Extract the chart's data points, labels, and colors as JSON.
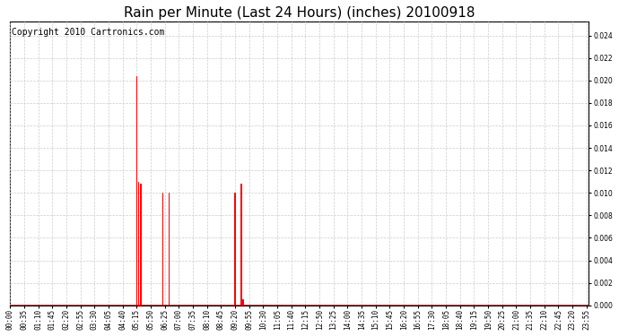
{
  "title": "Rain per Minute (Last 24 Hours) (inches) 20100918",
  "copyright": "Copyright 2010 Cartronics.com",
  "bar_color": "#ff0000",
  "background_color": "#ffffff",
  "plot_background": "#ffffff",
  "ylim": [
    0.0,
    0.0252
  ],
  "yticks": [
    0.0,
    0.002,
    0.004,
    0.006,
    0.008,
    0.01,
    0.012,
    0.014,
    0.016,
    0.018,
    0.02,
    0.022,
    0.024
  ],
  "grid_color": "#cccccc",
  "baseline_color": "#ff0000",
  "title_fontsize": 11,
  "copyright_fontsize": 7,
  "tick_fontsize": 5.5,
  "rain_data": {
    "315": 0.0204,
    "320": 0.011,
    "325": 0.0108,
    "380": 0.01,
    "395": 0.01,
    "560": 0.01,
    "575": 0.0108,
    "580": 0.0005
  }
}
